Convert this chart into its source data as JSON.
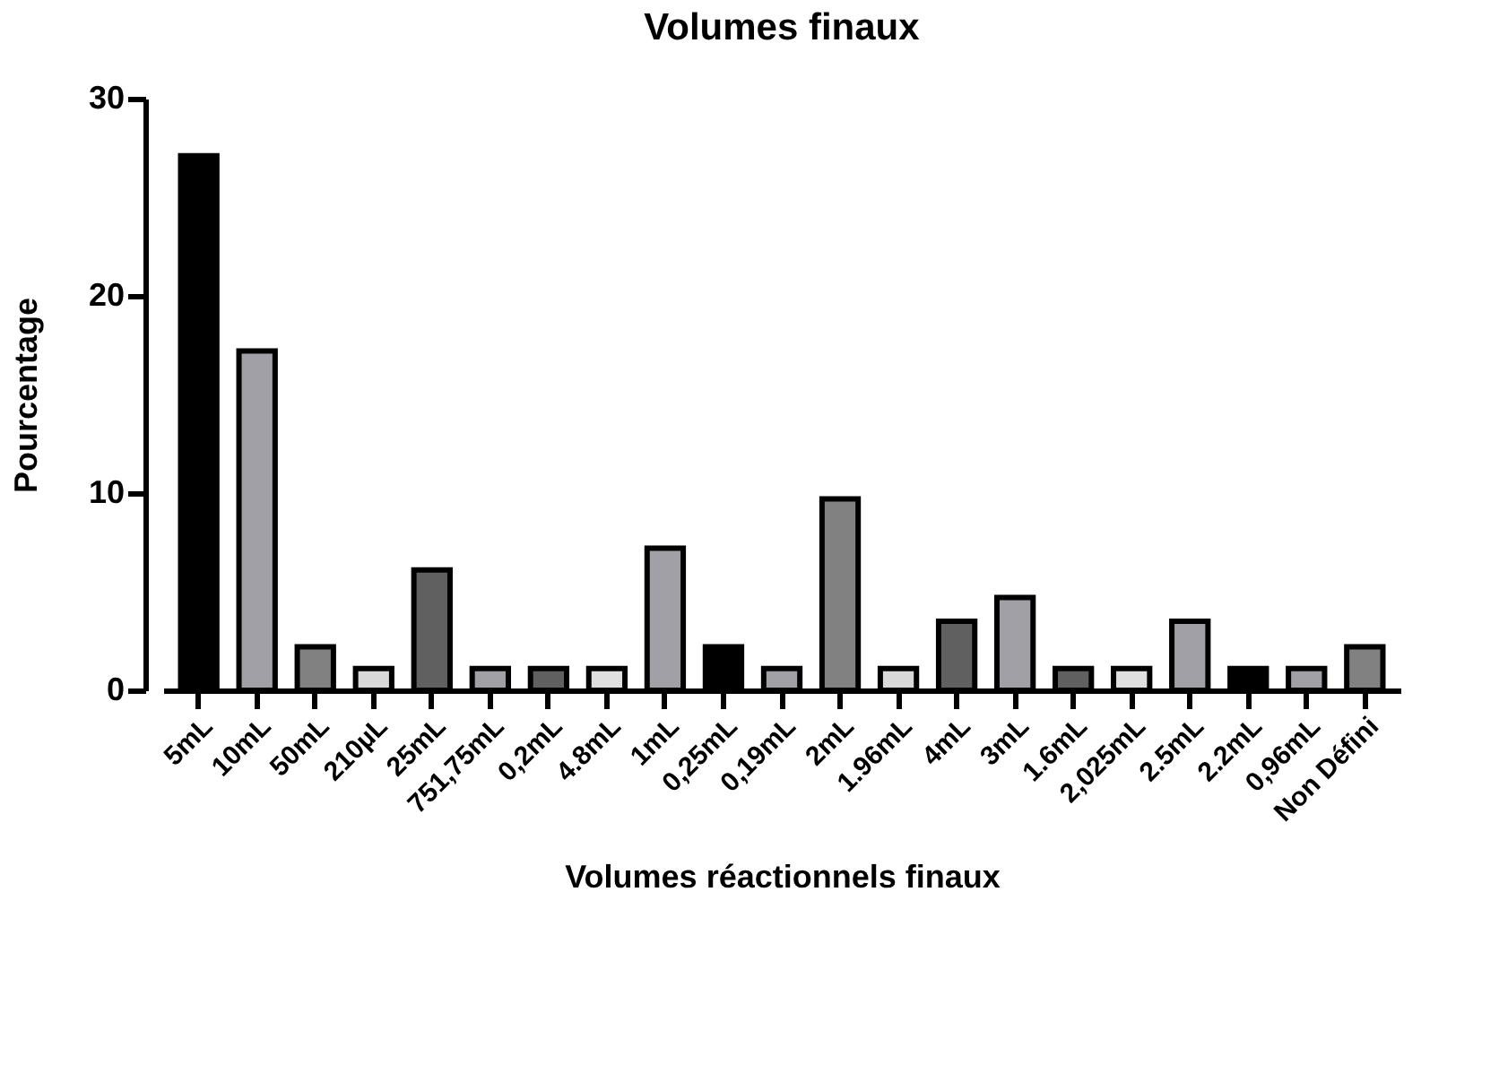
{
  "chart_data": {
    "type": "bar",
    "title": "Volumes finaux",
    "xlabel": "Volumes réactionnels finaux",
    "ylabel": "Pourcentage",
    "categories": [
      "5mL",
      "10mL",
      "50mL",
      "210µL",
      "25mL",
      "751,75mL",
      "0,2mL",
      "4.8mL",
      "1mL",
      "0,25mL",
      "0,19mL",
      "2mL",
      "1.96mL",
      "4mL",
      "3mL",
      "1.6mL",
      "2,025mL",
      "2.5mL",
      "2.2mL",
      "0,96mL",
      "Non Défini"
    ],
    "values": [
      27.1,
      17.2,
      2.2,
      1.1,
      6.1,
      1.1,
      1.1,
      1.1,
      7.2,
      2.2,
      1.1,
      9.7,
      1.1,
      3.5,
      4.7,
      1.1,
      1.1,
      3.5,
      1.1,
      1.1,
      2.2
    ],
    "colors": [
      "#000000",
      "#a1a0a6",
      "#818181",
      "#d9d9d9",
      "#606060",
      "#a1a0a6",
      "#606060",
      "#e0e0e0",
      "#a1a0a6",
      "#000000",
      "#a1a0a6",
      "#818181",
      "#d9d9d9",
      "#606060",
      "#a1a0a6",
      "#606060",
      "#e0e0e0",
      "#a1a0a6",
      "#000000",
      "#a1a0a6",
      "#818181"
    ],
    "ylim": [
      0,
      30
    ],
    "yticks": [
      0,
      10,
      20,
      30
    ],
    "grid": false
  }
}
